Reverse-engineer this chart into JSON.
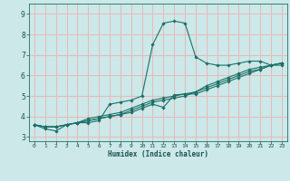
{
  "xlabel": "Humidex (Indice chaleur)",
  "xlim": [
    -0.5,
    23.5
  ],
  "ylim": [
    2.8,
    9.5
  ],
  "xticks": [
    0,
    1,
    2,
    3,
    4,
    5,
    6,
    7,
    8,
    9,
    10,
    11,
    12,
    13,
    14,
    15,
    16,
    17,
    18,
    19,
    20,
    21,
    22,
    23
  ],
  "yticks": [
    3,
    4,
    5,
    6,
    7,
    8,
    9
  ],
  "bg_color": "#cce8e8",
  "grid_color": "#e8b8b8",
  "line_color": "#1a7068",
  "lines": [
    [
      3.6,
      3.4,
      3.3,
      3.6,
      3.7,
      3.7,
      3.8,
      4.6,
      4.7,
      4.8,
      5.0,
      7.5,
      8.55,
      8.65,
      8.55,
      6.9,
      6.6,
      6.5,
      6.5,
      6.6,
      6.7,
      6.7,
      6.5,
      6.5
    ],
    [
      3.6,
      3.5,
      3.5,
      3.6,
      3.7,
      3.8,
      3.9,
      4.0,
      4.1,
      4.2,
      4.4,
      4.6,
      4.45,
      5.05,
      5.1,
      5.1,
      5.3,
      5.5,
      5.7,
      5.9,
      6.1,
      6.3,
      6.5,
      6.6
    ],
    [
      3.6,
      3.5,
      3.5,
      3.6,
      3.7,
      3.8,
      3.9,
      4.0,
      4.1,
      4.3,
      4.5,
      4.7,
      4.8,
      4.9,
      5.0,
      5.2,
      5.4,
      5.6,
      5.8,
      6.0,
      6.2,
      6.3,
      6.5,
      6.6
    ],
    [
      3.6,
      3.5,
      3.5,
      3.6,
      3.7,
      3.9,
      4.0,
      4.1,
      4.2,
      4.4,
      4.6,
      4.8,
      4.9,
      5.0,
      5.1,
      5.2,
      5.5,
      5.7,
      5.9,
      6.1,
      6.3,
      6.4,
      6.5,
      6.6
    ]
  ]
}
